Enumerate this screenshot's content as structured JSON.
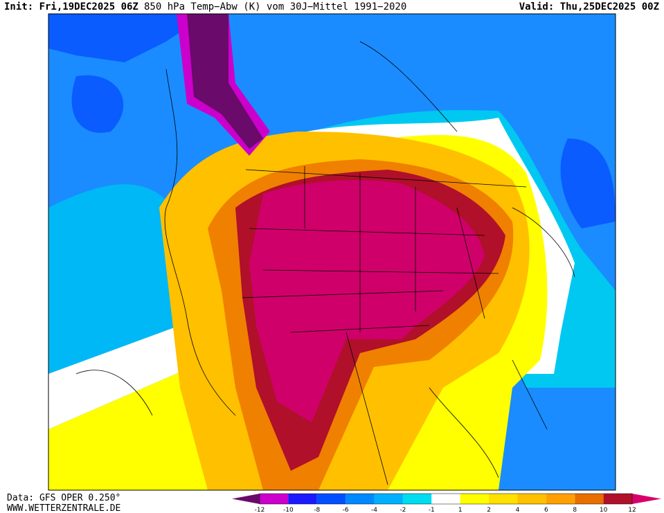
{
  "header": {
    "init": "Init: Fri,19DEC2025 06Z",
    "title": "850 hPa Temp−Abw (K) vom 30J−Mittel 1991−2020",
    "valid": "Valid: Thu,25DEC2025 00Z"
  },
  "footer": {
    "source": "Data: GFS OPER 0.250°",
    "site": "WWW.WETTERZENTRALE.DE"
  },
  "colorbar": {
    "ticks": [
      -12,
      -10,
      -8,
      -6,
      -4,
      -2,
      -1,
      1,
      2,
      4,
      6,
      8,
      10,
      12
    ],
    "colors": [
      "#6a0a6a",
      "#cc00cc",
      "#1a1aff",
      "#0050ff",
      "#0088ff",
      "#00b0ff",
      "#00dcf0",
      "#ffffff",
      "#ffff00",
      "#ffe000",
      "#ffc000",
      "#ffa000",
      "#e86e00",
      "#b0102a",
      "#d8006a"
    ]
  }
}
